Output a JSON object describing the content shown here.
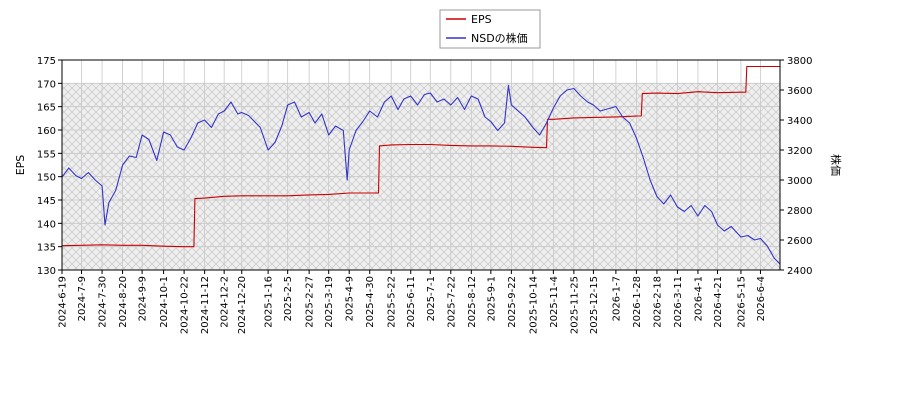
{
  "chart_data": {
    "type": "line",
    "legend": {
      "placement": "top-center",
      "entries": [
        {
          "label": "EPS",
          "color": "#cc0000"
        },
        {
          "label": "NSDの株価",
          "color": "#3333cc"
        }
      ]
    },
    "y_left": {
      "label": "EPS",
      "range": [
        130,
        175
      ],
      "ticks": [
        "130",
        "135",
        "140",
        "145",
        "150",
        "155",
        "160",
        "165",
        "170",
        "175"
      ]
    },
    "y_right": {
      "label": "株価",
      "range": [
        2400,
        3800
      ],
      "ticks": [
        "2400",
        "2600",
        "2800",
        "3000",
        "3200",
        "3400",
        "3600",
        "3800"
      ]
    },
    "x": {
      "range": [
        "2024-06-19",
        "2026-06-24"
      ],
      "tick_dates": [
        "2024-06-19",
        "2024-07-09",
        "2024-07-30",
        "2024-08-20",
        "2024-09-09",
        "2024-10-01",
        "2024-10-22",
        "2024-11-12",
        "2024-12-02",
        "2024-12-20",
        "2025-01-16",
        "2025-02-05",
        "2025-02-27",
        "2025-03-19",
        "2025-04-09",
        "2025-04-30",
        "2025-05-22",
        "2025-06-11",
        "2025-07-01",
        "2025-07-22",
        "2025-08-12",
        "2025-09-01",
        "2025-09-22",
        "2025-10-14",
        "2025-11-04",
        "2025-11-25",
        "2025-12-15",
        "2026-01-07",
        "2026-01-28",
        "2026-02-18",
        "2026-03-11",
        "2026-04-01",
        "2026-04-21",
        "2026-05-15",
        "2026-06-04"
      ],
      "tick_labels": [
        "2024-6-19",
        "2024-7-9",
        "2024-7-30",
        "2024-8-20",
        "2024-9-9",
        "2024-10-1",
        "2024-10-22",
        "2024-11-12",
        "2024-12-2",
        "2024-12-20",
        "2025-1-16",
        "2025-2-5",
        "2025-2-27",
        "2025-3-19",
        "2025-4-9",
        "2025-4-30",
        "2025-5-22",
        "2025-6-11",
        "2025-7-1",
        "2025-7-22",
        "2025-8-12",
        "2025-9-1",
        "2025-9-22",
        "2025-10-14",
        "2025-11-4",
        "2025-11-25",
        "2025-12-15",
        "2026-1-7",
        "2026-1-28",
        "2026-2-18",
        "2026-3-11",
        "2026-4-1",
        "2026-4-21",
        "2026-5-15",
        "2026-6-4"
      ]
    },
    "grid": true,
    "shaded_band": {
      "y_range": [
        130,
        170
      ],
      "pattern": "crosshatch"
    },
    "series": [
      {
        "name": "EPS",
        "axis": "left",
        "color": "#cc0000",
        "points": [
          [
            "2024-06-19",
            135.2
          ],
          [
            "2024-07-09",
            135.3
          ],
          [
            "2024-07-30",
            135.4
          ],
          [
            "2024-08-20",
            135.3
          ],
          [
            "2024-09-09",
            135.3
          ],
          [
            "2024-10-01",
            135.1
          ],
          [
            "2024-10-22",
            135.0
          ],
          [
            "2024-11-01",
            135.0
          ],
          [
            "2024-11-02",
            145.3
          ],
          [
            "2024-11-12",
            145.4
          ],
          [
            "2024-12-02",
            145.8
          ],
          [
            "2024-12-20",
            145.9
          ],
          [
            "2025-01-16",
            145.9
          ],
          [
            "2025-02-05",
            145.9
          ],
          [
            "2025-02-27",
            146.1
          ],
          [
            "2025-03-19",
            146.2
          ],
          [
            "2025-04-09",
            146.5
          ],
          [
            "2025-04-30",
            146.5
          ],
          [
            "2025-05-09",
            146.5
          ],
          [
            "2025-05-10",
            156.6
          ],
          [
            "2025-05-22",
            156.8
          ],
          [
            "2025-06-11",
            156.9
          ],
          [
            "2025-07-01",
            156.9
          ],
          [
            "2025-07-22",
            156.7
          ],
          [
            "2025-08-12",
            156.6
          ],
          [
            "2025-09-01",
            156.6
          ],
          [
            "2025-09-22",
            156.5
          ],
          [
            "2025-10-14",
            156.3
          ],
          [
            "2025-10-28",
            156.2
          ],
          [
            "2025-10-29",
            162.3
          ],
          [
            "2025-11-04",
            162.3
          ],
          [
            "2025-11-25",
            162.6
          ],
          [
            "2025-12-15",
            162.7
          ],
          [
            "2026-01-07",
            162.8
          ],
          [
            "2026-01-28",
            163.0
          ],
          [
            "2026-02-02",
            163.0
          ],
          [
            "2026-02-03",
            167.8
          ],
          [
            "2026-02-18",
            167.9
          ],
          [
            "2026-03-11",
            167.8
          ],
          [
            "2026-04-01",
            168.2
          ],
          [
            "2026-04-21",
            168.0
          ],
          [
            "2026-05-15",
            168.1
          ],
          [
            "2026-05-20",
            168.1
          ],
          [
            "2026-05-21",
            173.6
          ],
          [
            "2026-06-04",
            173.6
          ],
          [
            "2026-06-24",
            173.6
          ]
        ]
      },
      {
        "name": "NSDの株価",
        "axis": "right",
        "color": "#3333cc",
        "points": [
          [
            "2024-06-19",
            3020
          ],
          [
            "2024-06-26",
            3080
          ],
          [
            "2024-07-03",
            3030
          ],
          [
            "2024-07-09",
            3010
          ],
          [
            "2024-07-16",
            3050
          ],
          [
            "2024-07-23",
            3000
          ],
          [
            "2024-07-30",
            2960
          ],
          [
            "2024-08-02",
            2700
          ],
          [
            "2024-08-06",
            2850
          ],
          [
            "2024-08-13",
            2930
          ],
          [
            "2024-08-20",
            3100
          ],
          [
            "2024-08-27",
            3160
          ],
          [
            "2024-09-03",
            3150
          ],
          [
            "2024-09-09",
            3300
          ],
          [
            "2024-09-16",
            3270
          ],
          [
            "2024-09-24",
            3130
          ],
          [
            "2024-10-01",
            3320
          ],
          [
            "2024-10-08",
            3300
          ],
          [
            "2024-10-15",
            3220
          ],
          [
            "2024-10-22",
            3200
          ],
          [
            "2024-10-29",
            3280
          ],
          [
            "2024-11-05",
            3380
          ],
          [
            "2024-11-12",
            3400
          ],
          [
            "2024-11-19",
            3350
          ],
          [
            "2024-11-26",
            3440
          ],
          [
            "2024-12-02",
            3460
          ],
          [
            "2024-12-09",
            3520
          ],
          [
            "2024-12-16",
            3440
          ],
          [
            "2024-12-20",
            3450
          ],
          [
            "2024-12-27",
            3430
          ],
          [
            "2025-01-08",
            3350
          ],
          [
            "2025-01-16",
            3200
          ],
          [
            "2025-01-23",
            3250
          ],
          [
            "2025-01-30",
            3360
          ],
          [
            "2025-02-05",
            3500
          ],
          [
            "2025-02-12",
            3520
          ],
          [
            "2025-02-19",
            3420
          ],
          [
            "2025-02-27",
            3450
          ],
          [
            "2025-03-05",
            3380
          ],
          [
            "2025-03-12",
            3440
          ],
          [
            "2025-03-19",
            3300
          ],
          [
            "2025-03-26",
            3360
          ],
          [
            "2025-04-03",
            3330
          ],
          [
            "2025-04-07",
            3000
          ],
          [
            "2025-04-09",
            3200
          ],
          [
            "2025-04-16",
            3330
          ],
          [
            "2025-04-23",
            3390
          ],
          [
            "2025-04-30",
            3460
          ],
          [
            "2025-05-08",
            3420
          ],
          [
            "2025-05-15",
            3520
          ],
          [
            "2025-05-22",
            3560
          ],
          [
            "2025-05-29",
            3470
          ],
          [
            "2025-06-04",
            3540
          ],
          [
            "2025-06-11",
            3560
          ],
          [
            "2025-06-18",
            3500
          ],
          [
            "2025-06-25",
            3570
          ],
          [
            "2025-07-01",
            3580
          ],
          [
            "2025-07-08",
            3520
          ],
          [
            "2025-07-15",
            3540
          ],
          [
            "2025-07-22",
            3500
          ],
          [
            "2025-07-29",
            3550
          ],
          [
            "2025-08-05",
            3470
          ],
          [
            "2025-08-12",
            3560
          ],
          [
            "2025-08-19",
            3540
          ],
          [
            "2025-08-26",
            3420
          ],
          [
            "2025-09-01",
            3390
          ],
          [
            "2025-09-08",
            3330
          ],
          [
            "2025-09-15",
            3380
          ],
          [
            "2025-09-19",
            3630
          ],
          [
            "2025-09-22",
            3500
          ],
          [
            "2025-09-29",
            3460
          ],
          [
            "2025-10-06",
            3420
          ],
          [
            "2025-10-14",
            3350
          ],
          [
            "2025-10-21",
            3300
          ],
          [
            "2025-10-28",
            3380
          ],
          [
            "2025-11-04",
            3480
          ],
          [
            "2025-11-11",
            3560
          ],
          [
            "2025-11-18",
            3600
          ],
          [
            "2025-11-25",
            3610
          ],
          [
            "2025-12-02",
            3560
          ],
          [
            "2025-12-09",
            3520
          ],
          [
            "2025-12-15",
            3500
          ],
          [
            "2025-12-22",
            3460
          ],
          [
            "2026-01-07",
            3490
          ],
          [
            "2026-01-14",
            3420
          ],
          [
            "2026-01-21",
            3380
          ],
          [
            "2026-01-28",
            3280
          ],
          [
            "2026-02-04",
            3150
          ],
          [
            "2026-02-11",
            3000
          ],
          [
            "2026-02-18",
            2890
          ],
          [
            "2026-02-25",
            2840
          ],
          [
            "2026-03-04",
            2900
          ],
          [
            "2026-03-11",
            2820
          ],
          [
            "2026-03-18",
            2790
          ],
          [
            "2026-03-25",
            2830
          ],
          [
            "2026-04-01",
            2760
          ],
          [
            "2026-04-08",
            2830
          ],
          [
            "2026-04-15",
            2790
          ],
          [
            "2026-04-21",
            2700
          ],
          [
            "2026-04-28",
            2660
          ],
          [
            "2026-05-05",
            2690
          ],
          [
            "2026-05-15",
            2620
          ],
          [
            "2026-05-22",
            2630
          ],
          [
            "2026-05-29",
            2600
          ],
          [
            "2026-06-04",
            2610
          ],
          [
            "2026-06-11",
            2560
          ],
          [
            "2026-06-18",
            2480
          ],
          [
            "2026-06-24",
            2440
          ]
        ]
      }
    ]
  }
}
